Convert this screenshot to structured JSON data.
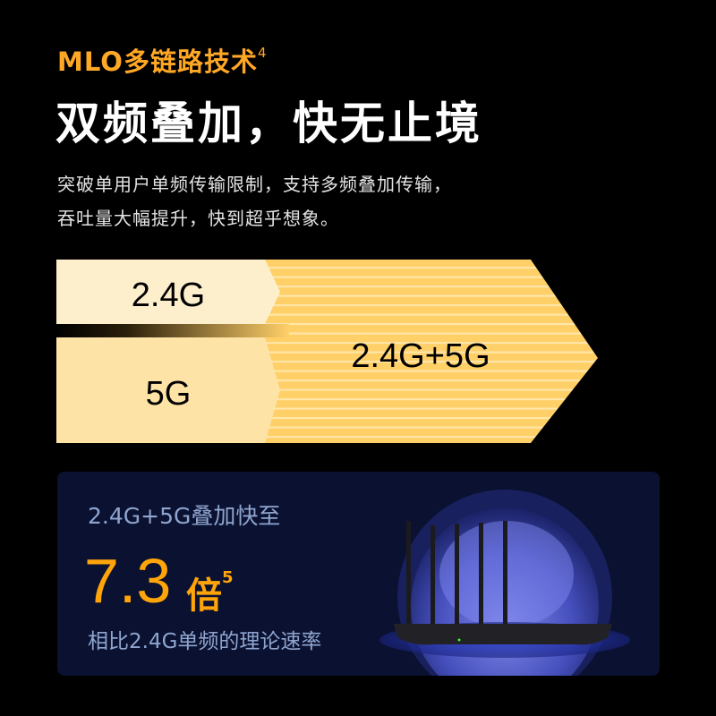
{
  "header": {
    "tag": "MLO多链路技术",
    "tag_note": "4",
    "title": "双频叠加，快无止境",
    "description_lines": [
      "突破单用户单频传输限制，支持多频叠加传输，",
      "吞吐量大幅提升，快到超乎想象。"
    ]
  },
  "diagram": {
    "band1": "2.4G",
    "band2": "5G",
    "combined": "2.4G+5G",
    "colors": {
      "band1": "#feefcc",
      "band2": "#fee3a7",
      "combined": "#ffd069",
      "accent": "#ffa825"
    }
  },
  "card": {
    "headline": "2.4G+5G叠加快至",
    "value": "7.3",
    "unit": "倍",
    "unit_note": "5",
    "caption": "相比2.4G单频的理论速率"
  }
}
